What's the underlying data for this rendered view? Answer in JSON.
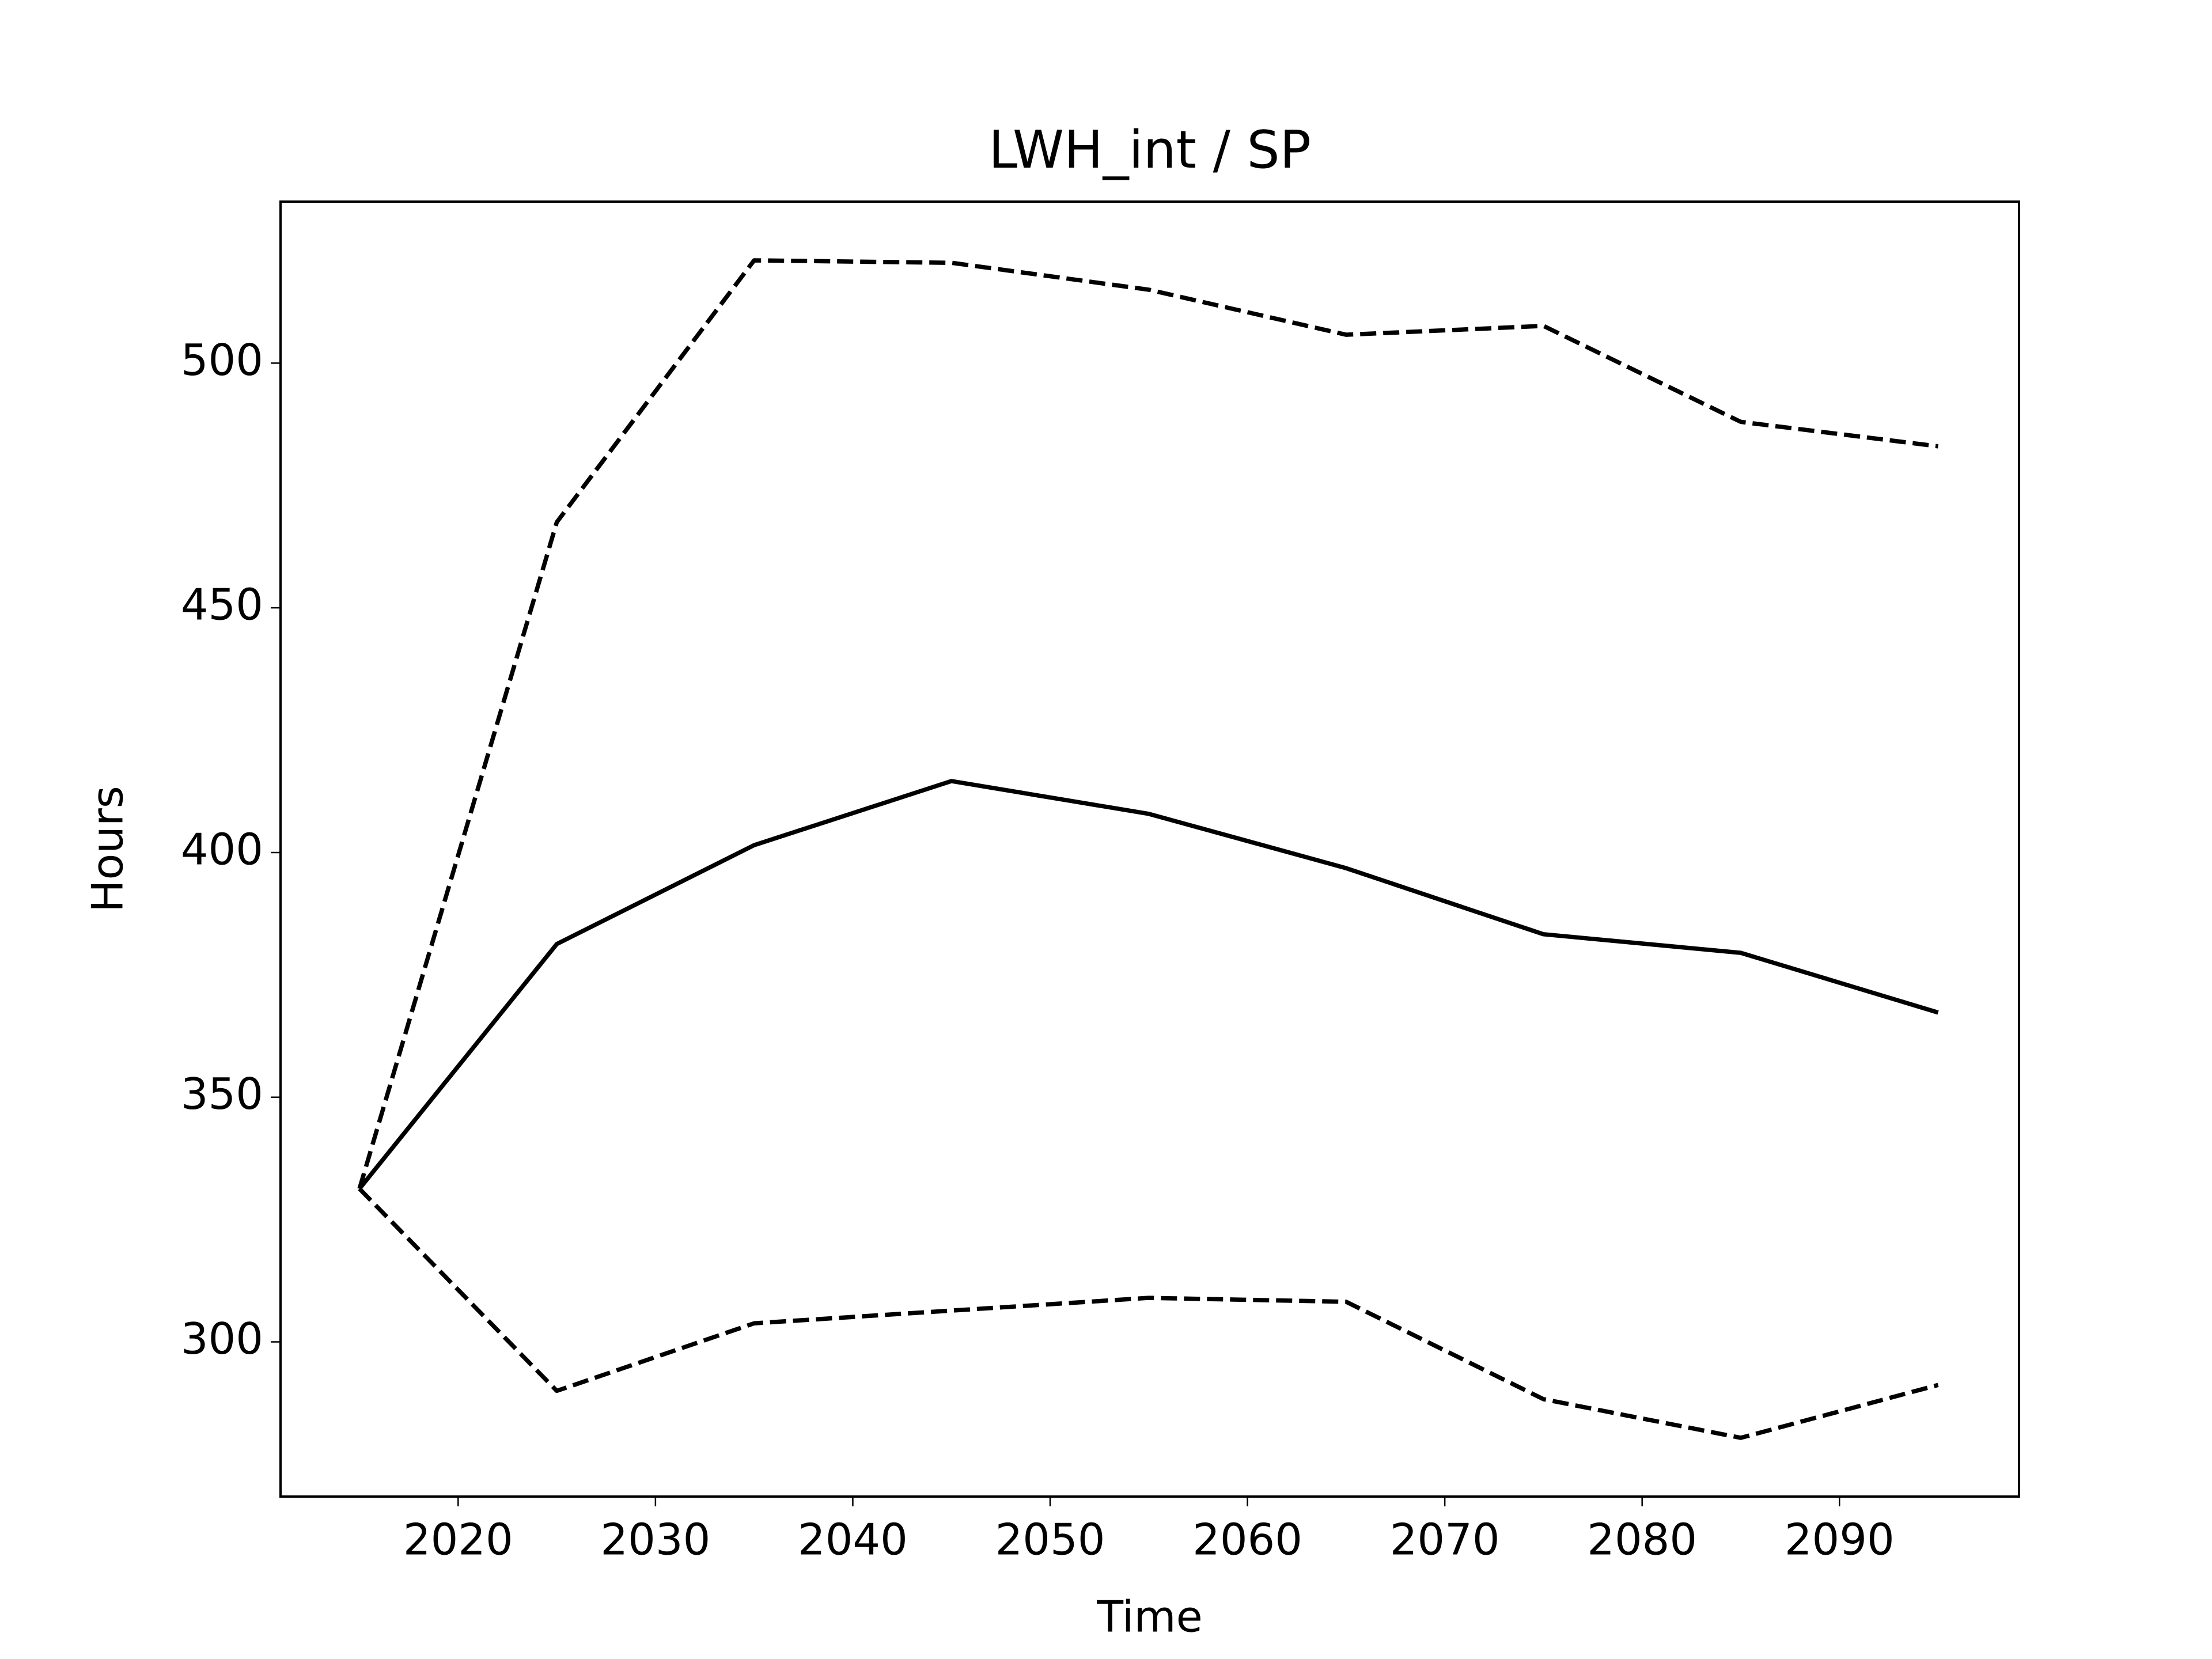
{
  "chart_data": {
    "type": "line",
    "title": "LWH_int / SP",
    "x_label": "Time",
    "y_label": "Hours",
    "x": [
      2015,
      2025,
      2035,
      2045,
      2055,
      2065,
      2075,
      2085,
      2095
    ],
    "series": [
      {
        "color": "#000000",
        "style": "solid",
        "values": [
          331.3,
          381.3,
          401.5,
          414.6,
          407.9,
          396.8,
          383.3,
          379.5,
          367.3
        ]
      },
      {
        "color": "#000000",
        "style": "dashed",
        "values": [
          331.3,
          467.5,
          521,
          520.5,
          515,
          505.8,
          507.6,
          488,
          483
        ]
      },
      {
        "color": "#000000",
        "style": "dashed",
        "values": [
          331.3,
          290,
          303.8,
          306.4,
          309,
          308.2,
          288.3,
          280.4,
          291.2
        ]
      }
    ],
    "xlim": [
      2011,
      2099.1
    ],
    "xticks": [
      2020,
      2030,
      2040,
      2050,
      2060,
      2070,
      2080,
      2090
    ],
    "ylim": [
      268.4,
      533
    ],
    "yticks": [
      300,
      350,
      400,
      450,
      500
    ],
    "grid": false
  }
}
